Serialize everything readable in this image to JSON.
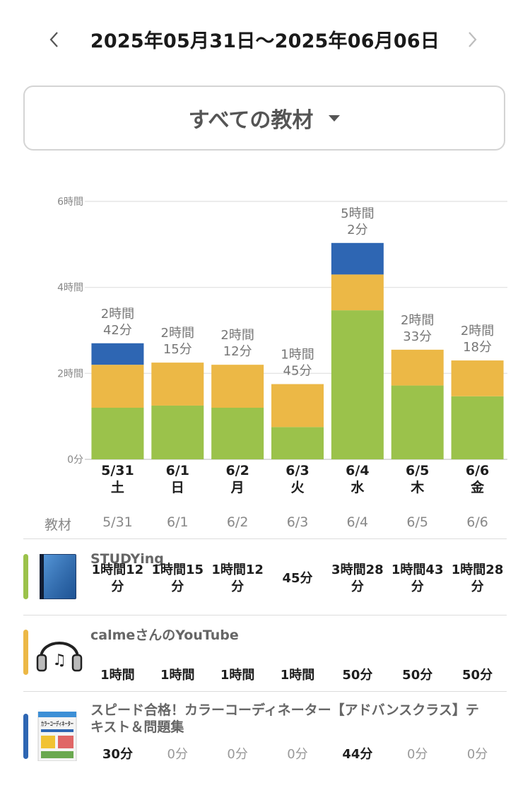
{
  "header": {
    "date_range": "2025年05月31日〜2025年06月06日",
    "prev_icon": "chevron-left-icon",
    "next_icon": "chevron-right-icon"
  },
  "material_selector": {
    "label": "すべての教材",
    "icon": "caret-down-icon"
  },
  "colors": {
    "studying": "#9bc24b",
    "youtube": "#ecb846",
    "textbook": "#2e66b3"
  },
  "chart_data": {
    "type": "bar",
    "stacked": true,
    "categories": [
      "5/31",
      "6/1",
      "6/2",
      "6/3",
      "6/4",
      "6/5",
      "6/6"
    ],
    "weekdays": [
      "土",
      "日",
      "月",
      "火",
      "水",
      "木",
      "金"
    ],
    "unit": "minutes",
    "ylim": [
      0,
      360
    ],
    "yticks": [
      {
        "value": 0,
        "label": "0分"
      },
      {
        "value": 120,
        "label": "2時間"
      },
      {
        "value": 240,
        "label": "4時間"
      },
      {
        "value": 360,
        "label": "6時間"
      }
    ],
    "grid": true,
    "series": [
      {
        "key": "studying",
        "values": [
          72,
          75,
          72,
          45,
          208,
          103,
          88
        ]
      },
      {
        "key": "youtube",
        "values": [
          60,
          60,
          60,
          60,
          50,
          50,
          50
        ]
      },
      {
        "key": "textbook",
        "values": [
          30,
          0,
          0,
          0,
          44,
          0,
          0
        ]
      }
    ],
    "total_labels": [
      [
        "2時間",
        "42分"
      ],
      [
        "2時間",
        "15分"
      ],
      [
        "2時間",
        "12分"
      ],
      [
        "1時間",
        "45分"
      ],
      [
        "5時間",
        "2分"
      ],
      [
        "2時間",
        "33分"
      ],
      [
        "2時間",
        "18分"
      ]
    ]
  },
  "table": {
    "header_label": "教材",
    "dates": [
      "5/31",
      "6/1",
      "6/2",
      "6/3",
      "6/4",
      "6/5",
      "6/6"
    ],
    "materials": [
      {
        "name": "STUDYing",
        "icon": "blue-book-icon",
        "times": [
          "1時間12分",
          "1時間15分",
          "1時間12分",
          "45分",
          "3時間28分",
          "1時間43分",
          "1時間28分"
        ]
      },
      {
        "name": "calmeさんのYouTube",
        "icon": "headphones-music-icon",
        "times": [
          "1時間",
          "1時間",
          "1時間",
          "1時間",
          "50分",
          "50分",
          "50分"
        ]
      },
      {
        "name": "スピード合格！カラーコーディネーター【アドバンスクラス】テキスト＆問題集",
        "name_lines": [
          "スピード合格！カラーコーディネーター【アドバンスクラス】テ",
          "キスト＆問題集"
        ],
        "icon": "textbook-cover-icon",
        "cover_text": "カラーコーディネーター",
        "times": [
          "30分",
          "0分",
          "0分",
          "0分",
          "44分",
          "0分",
          "0分"
        ]
      }
    ]
  }
}
